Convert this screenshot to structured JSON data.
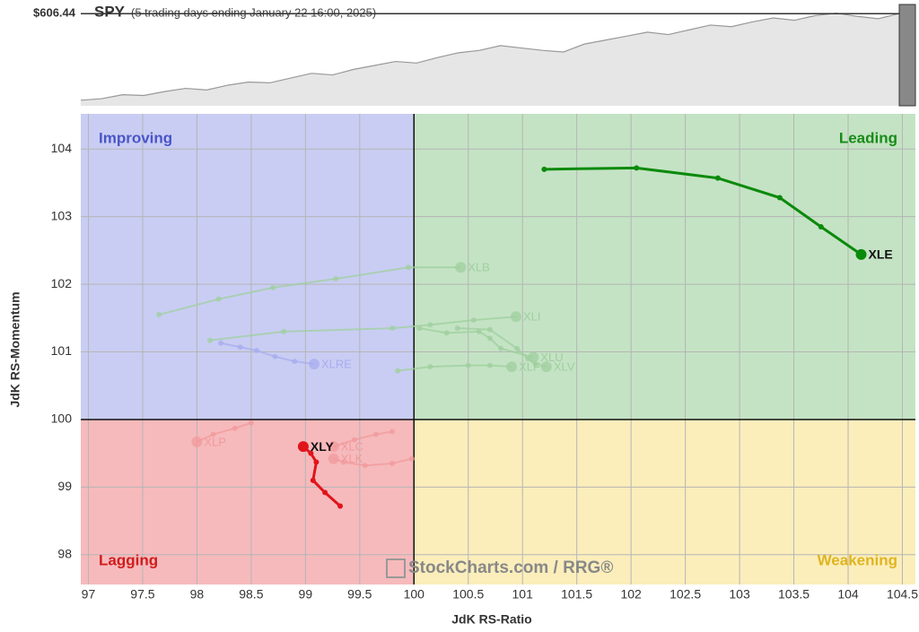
{
  "chart_data": [
    {
      "type": "line",
      "title": "SPY",
      "subtitle": "(5 trading days ending January 22 16:00, 2025)",
      "price_label": {
        "value": 606.44,
        "label": "$606.44"
      },
      "color": "#999999",
      "values": [
        497,
        499,
        504,
        503,
        508,
        512,
        510,
        516,
        520,
        519,
        525,
        531,
        529,
        536,
        541,
        546,
        544,
        551,
        557,
        560,
        566,
        563,
        560,
        558,
        568,
        573,
        578,
        583,
        580,
        586,
        592,
        590,
        596,
        601,
        598,
        604,
        607,
        603,
        600,
        606.44
      ],
      "ylim": [
        490,
        618
      ]
    },
    {
      "type": "rrg",
      "x_label": "JdK RS-Ratio",
      "y_label": "JdK RS-Momentum",
      "xlim": [
        96.93,
        104.62
      ],
      "ylim": [
        97.56,
        104.52
      ],
      "xticks": [
        97,
        97.5,
        98,
        98.5,
        99,
        99.5,
        100,
        100.5,
        101,
        101.5,
        102,
        102.5,
        103,
        103.5,
        104,
        104.5
      ],
      "yticks": [
        98,
        99,
        100,
        101,
        102,
        103,
        104
      ],
      "grid": true,
      "center": {
        "x": 100,
        "y": 100
      },
      "quadrants": [
        {
          "label": "Improving",
          "color": "#c9cdf3",
          "text_color": "#4a55c8"
        },
        {
          "label": "Leading",
          "color": "#c4e3c4",
          "text_color": "#178c17"
        },
        {
          "label": "Lagging",
          "color": "#f6babc",
          "text_color": "#d11c1c"
        },
        {
          "label": "Weakening",
          "color": "#fbeebb",
          "text_color": "#e0b420"
        }
      ],
      "watermark": "StockCharts.com / RRG®",
      "series": [
        {
          "name": "XLB",
          "color": "#9fcf9f",
          "highlight": false,
          "x": [
            97.65,
            98.2,
            98.7,
            99.28,
            99.95,
            100.43
          ],
          "y": [
            101.55,
            101.78,
            101.95,
            102.08,
            102.25,
            102.25
          ]
        },
        {
          "name": "XLI",
          "color": "#9fcf9f",
          "highlight": false,
          "x": [
            98.12,
            98.8,
            99.8,
            100.15,
            100.55,
            100.94
          ],
          "y": [
            101.17,
            101.3,
            101.35,
            101.4,
            101.47,
            101.52
          ]
        },
        {
          "name": "XLU",
          "color": "#9fcf9f",
          "highlight": false,
          "x": [
            100.05,
            100.3,
            100.6,
            100.7,
            100.8,
            101.1
          ],
          "y": [
            101.35,
            101.28,
            101.3,
            101.2,
            101.05,
            100.92
          ]
        },
        {
          "name": "XLV",
          "color": "#9fcf9f",
          "highlight": false,
          "x": [
            100.4,
            100.7,
            100.95,
            101.05,
            101.12,
            101.22
          ],
          "y": [
            101.35,
            101.33,
            101.05,
            100.9,
            100.82,
            100.78
          ]
        },
        {
          "name": "XLF",
          "color": "#9fcf9f",
          "highlight": false,
          "x": [
            99.85,
            100.15,
            100.5,
            100.7,
            100.9
          ],
          "y": [
            100.72,
            100.78,
            100.8,
            100.8,
            100.78
          ]
        },
        {
          "name": "XLRE",
          "color": "#a7acef",
          "highlight": false,
          "x": [
            98.22,
            98.4,
            98.55,
            98.72,
            98.9,
            99.08
          ],
          "y": [
            101.13,
            101.07,
            101.02,
            100.93,
            100.86,
            100.82
          ]
        },
        {
          "name": "XLP",
          "color": "#f29a9c",
          "highlight": false,
          "x": [
            98.5,
            98.35,
            98.15,
            98.0
          ],
          "y": [
            99.95,
            99.87,
            99.78,
            99.67
          ]
        },
        {
          "name": "XLC",
          "color": "#f29a9c",
          "highlight": false,
          "x": [
            99.8,
            99.65,
            99.45,
            99.26
          ],
          "y": [
            99.82,
            99.78,
            99.7,
            99.6
          ]
        },
        {
          "name": "XLK",
          "color": "#f29a9c",
          "highlight": false,
          "x": [
            99.98,
            99.8,
            99.55,
            99.35,
            99.26
          ],
          "y": [
            99.42,
            99.35,
            99.32,
            99.37,
            99.42
          ]
        },
        {
          "name": "XLE",
          "color": "#0a8a0a",
          "highlight": true,
          "x": [
            101.2,
            102.05,
            102.8,
            103.37,
            103.75,
            104.12
          ],
          "y": [
            103.7,
            103.72,
            103.57,
            103.28,
            102.85,
            102.44
          ]
        },
        {
          "name": "XLY",
          "color": "#e0141b",
          "highlight": true,
          "x": [
            99.32,
            99.18,
            99.07,
            99.1,
            99.05,
            98.98
          ],
          "y": [
            98.72,
            98.92,
            99.1,
            99.37,
            99.5,
            99.6
          ]
        }
      ]
    }
  ]
}
